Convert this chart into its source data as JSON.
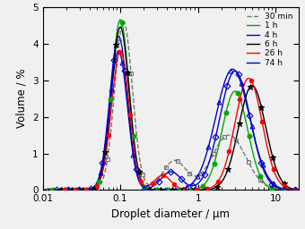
{
  "title": "",
  "xlabel": "Droplet diameter / μm",
  "ylabel": "Volume / %",
  "xlim": [
    0.01,
    20
  ],
  "ylim": [
    0,
    5
  ],
  "yticks": [
    0,
    1,
    2,
    3,
    4,
    5
  ],
  "series": [
    {
      "label": "30 min",
      "color": "#777777",
      "marker": "s",
      "markerfacecolor": "none",
      "markeredgecolor": "#777777",
      "linestyle": "--",
      "linewidth": 1.0,
      "markersize": 3.5
    },
    {
      "label": "1 h",
      "color": "#00aa00",
      "marker": "o",
      "markerfacecolor": "#00aa00",
      "markeredgecolor": "#00aa00",
      "linestyle": "-",
      "linewidth": 1.0,
      "markersize": 3.5
    },
    {
      "label": "4 h",
      "color": "#0000cc",
      "marker": "D",
      "markerfacecolor": "none",
      "markeredgecolor": "#0000cc",
      "linestyle": "-",
      "linewidth": 1.0,
      "markersize": 3.5
    },
    {
      "label": "6 h",
      "color": "#000000",
      "marker": "*",
      "markerfacecolor": "#000000",
      "markeredgecolor": "#000000",
      "linestyle": "-",
      "linewidth": 1.0,
      "markersize": 5.0
    },
    {
      "label": "26 h",
      "color": "#ff0000",
      "marker": "h",
      "markerfacecolor": "#ff0000",
      "markeredgecolor": "#ff0000",
      "linestyle": "-",
      "linewidth": 1.0,
      "markersize": 3.5
    },
    {
      "label": "74 h",
      "color": "#0000cc",
      "marker": "^",
      "markerfacecolor": "none",
      "markeredgecolor": "#0000cc",
      "linestyle": "-",
      "linewidth": 1.0,
      "markersize": 3.5
    }
  ],
  "background_color": "#f0f0f0",
  "legend_fontsize": 6.5,
  "axis_fontsize": 8.5,
  "tick_fontsize": 7.5
}
